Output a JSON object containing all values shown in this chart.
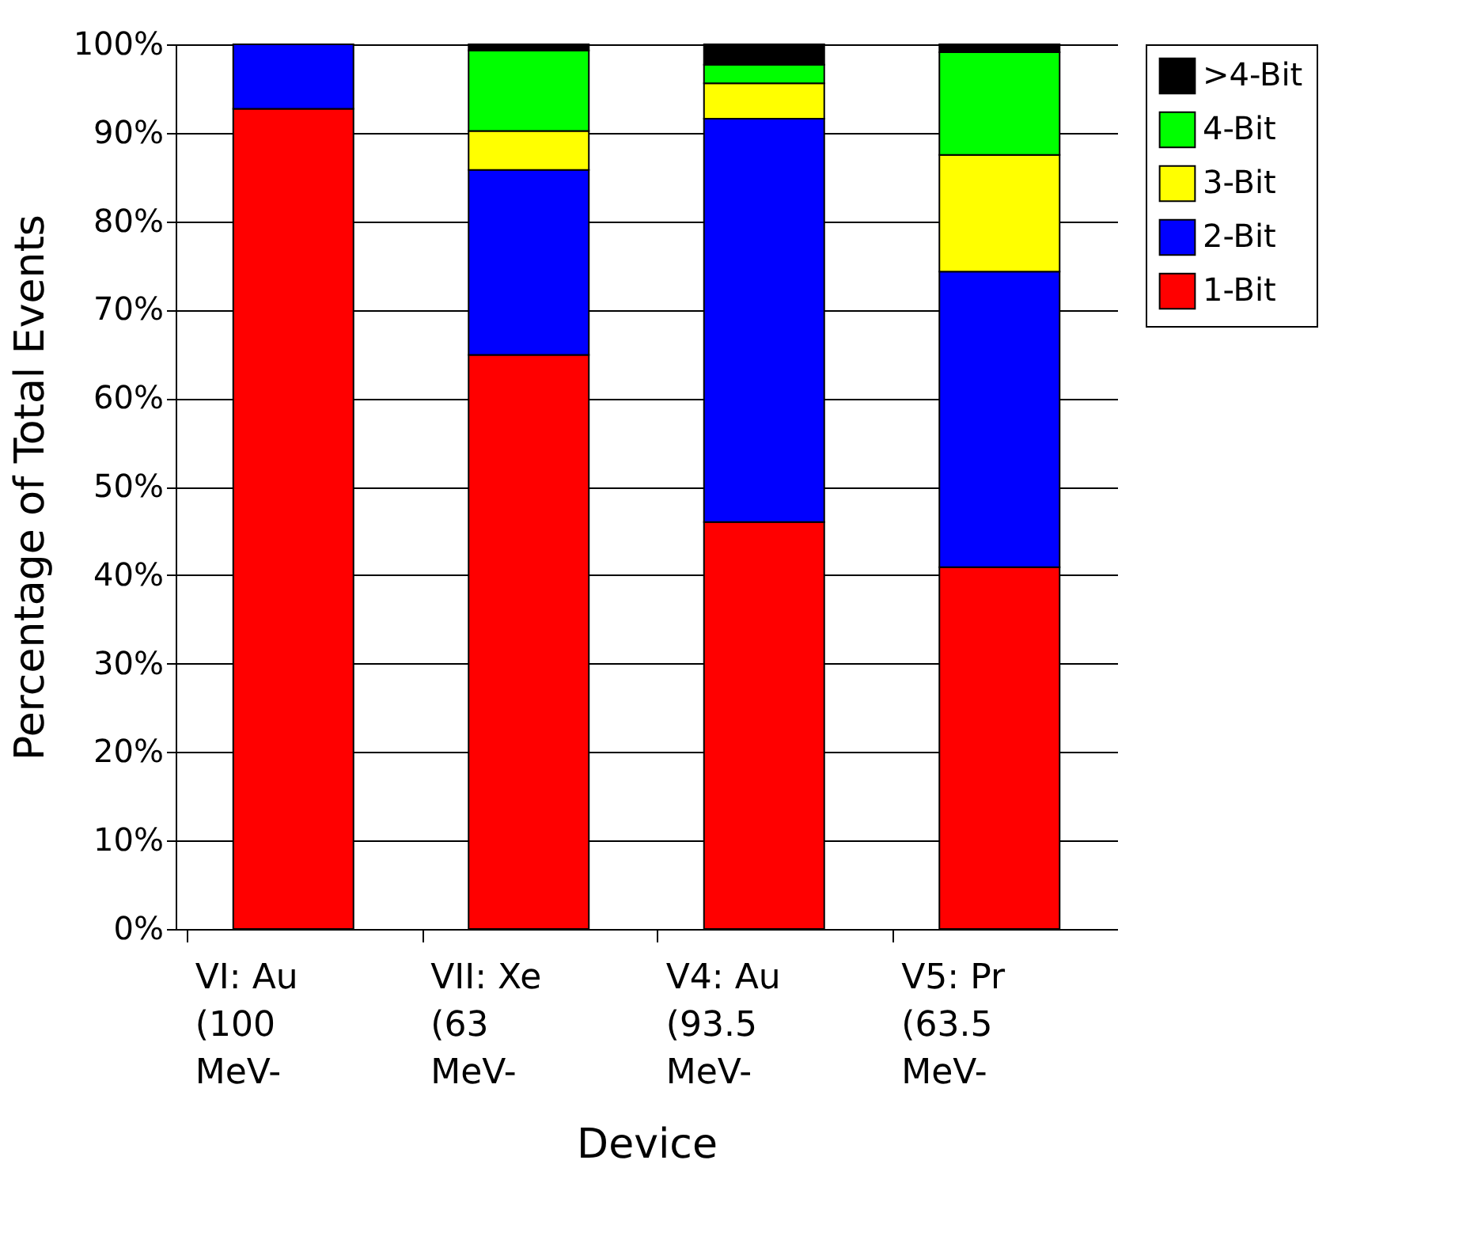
{
  "chart_data": {
    "type": "bar",
    "stacked": true,
    "xlabel": "Device",
    "ylabel": "Percentage of Total Events",
    "categories": [
      "VI: Au (100 MeV-",
      "VII: Xe (63 MeV-",
      "V4: Au (93.5 MeV-",
      "V5: Pr (63.5 MeV-"
    ],
    "series": [
      {
        "name": "1-Bit",
        "color": "#ff0000",
        "values": [
          92.7,
          64.9,
          46.0,
          40.9
        ]
      },
      {
        "name": "2-Bit",
        "color": "#0000ff",
        "values": [
          7.3,
          20.9,
          45.6,
          33.4
        ]
      },
      {
        "name": "3-Bit",
        "color": "#ffff00",
        "values": [
          0,
          4.4,
          4.0,
          13.2
        ]
      },
      {
        "name": "4-Bit",
        "color": "#00ff00",
        "values": [
          0,
          9.1,
          2.1,
          11.6
        ]
      },
      {
        "name": ">4-Bit",
        "color": "#000000",
        "values": [
          0,
          0.7,
          2.3,
          0.9
        ]
      }
    ],
    "ylim": [
      0,
      100
    ],
    "yticks": [
      {
        "value": 0,
        "label": "0%"
      },
      {
        "value": 10,
        "label": "10%"
      },
      {
        "value": 20,
        "label": "20%"
      },
      {
        "value": 30,
        "label": "30%"
      },
      {
        "value": 40,
        "label": "40%"
      },
      {
        "value": 50,
        "label": "50%"
      },
      {
        "value": 60,
        "label": "60%"
      },
      {
        "value": 70,
        "label": "70%"
      },
      {
        "value": 80,
        "label": "80%"
      },
      {
        "value": 90,
        "label": "90%"
      },
      {
        "value": 100,
        "label": "100%"
      }
    ],
    "grid": "y",
    "legend": "right"
  }
}
